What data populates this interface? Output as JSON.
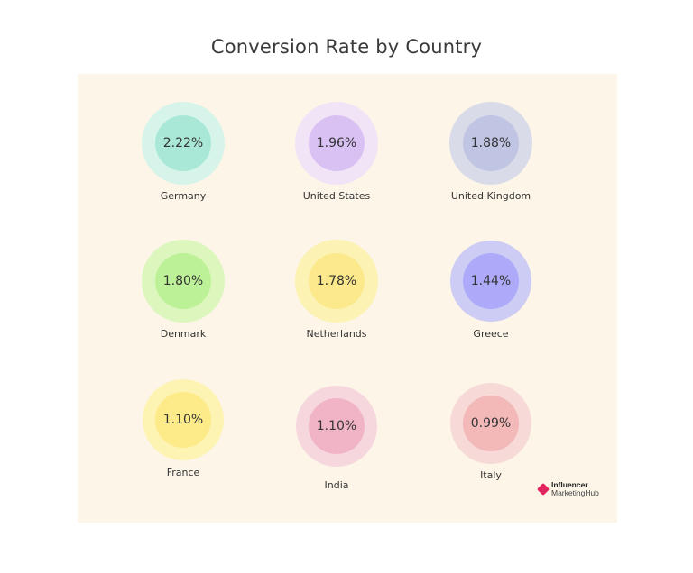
{
  "chart_data": {
    "type": "bubble-grid",
    "title": "Conversion Rate by Country",
    "unit": "%",
    "items": [
      {
        "country": "Germany",
        "label": "2.22%",
        "value": 2.22,
        "outer": "#d6f4ea",
        "inner": "#a9e8d7"
      },
      {
        "country": "United States",
        "label": "1.96%",
        "value": 1.96,
        "outer": "#f2e4f7",
        "inner": "#d9c1f4"
      },
      {
        "country": "United Kingdom",
        "label": "1.88%",
        "value": 1.88,
        "outer": "#d9dbe9",
        "inner": "#bfc5e3"
      },
      {
        "country": "Denmark",
        "label": "1.80%",
        "value": 1.8,
        "outer": "#dcf6bd",
        "inner": "#bdf197"
      },
      {
        "country": "Netherlands",
        "label": "1.78%",
        "value": 1.78,
        "outer": "#fbf2b4",
        "inner": "#fbe98c"
      },
      {
        "country": "Greece",
        "label": "1.44%",
        "value": 1.44,
        "outer": "#ccccf4",
        "inner": "#adabf9"
      },
      {
        "country": "France",
        "label": "1.10%",
        "value": 1.1,
        "outer": "#fdf3b3",
        "inner": "#fdeb8a"
      },
      {
        "country": "India",
        "label": "1.10%",
        "value": 1.1,
        "outer": "#f7d7de",
        "inner": "#f1b4c6"
      },
      {
        "country": "Italy",
        "label": "0.99%",
        "value": 0.99,
        "outer": "#f7dad8",
        "inner": "#f3b9b9"
      }
    ]
  },
  "brand": {
    "line1": "Influencer",
    "line2": "MarketingHub",
    "logo_color": "#e0245e"
  }
}
